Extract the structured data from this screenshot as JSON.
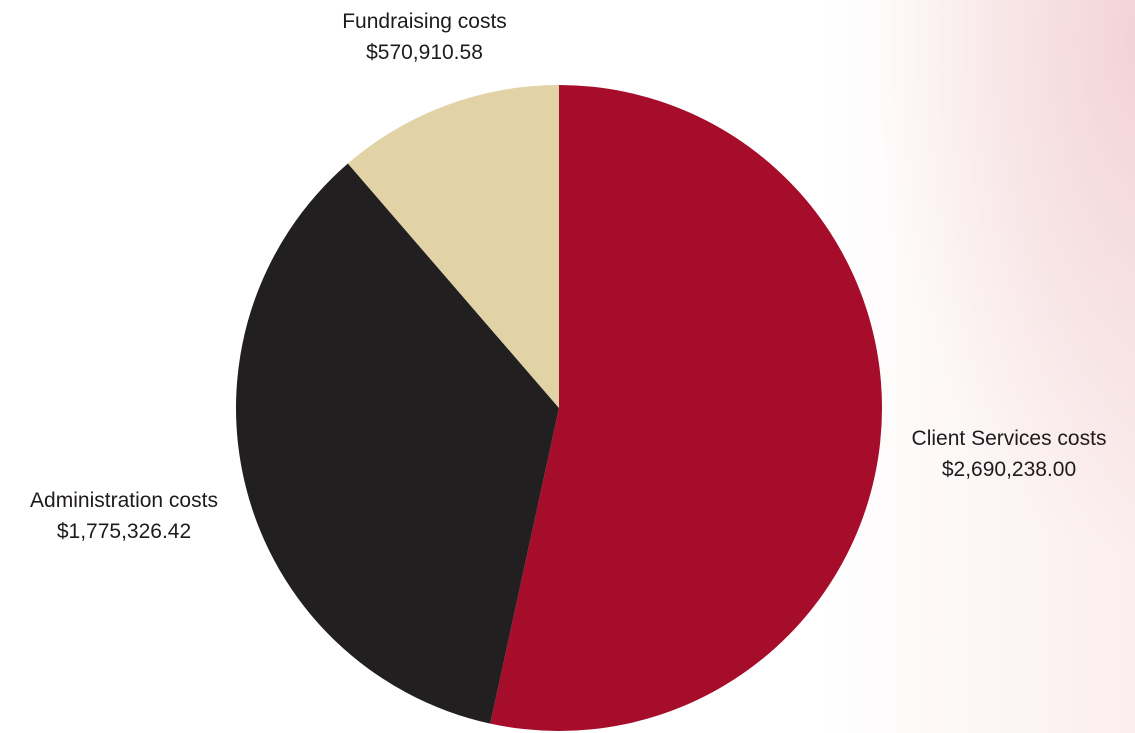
{
  "chart_data": {
    "type": "pie",
    "slices": [
      {
        "label": "Client Services costs",
        "value": 2690238.0,
        "value_text": "$2,690,238.00",
        "color": "#a50d2b"
      },
      {
        "label": "Administration costs",
        "value": 1775326.42,
        "value_text": "$1,775,326.42",
        "color": "#221f20"
      },
      {
        "label": "Fundraising costs",
        "value": 570910.58,
        "value_text": "$570,910.58",
        "color": "#e2d3a7"
      }
    ],
    "start_angle_deg": 0,
    "direction": "clockwise",
    "legend": "none",
    "labels_placement": "outside slices"
  }
}
